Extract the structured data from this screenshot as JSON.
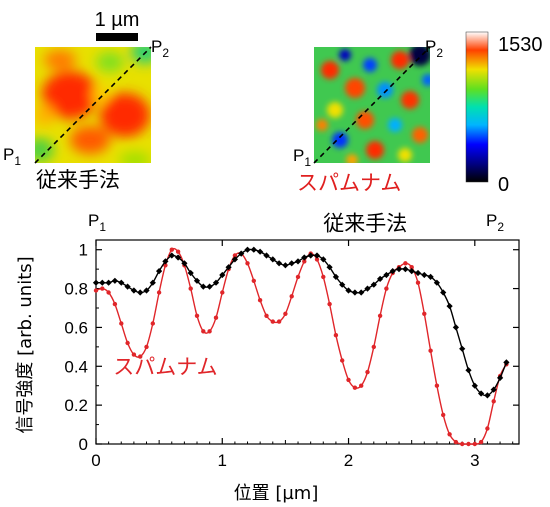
{
  "images": {
    "scale_bar": "1 µm",
    "left": {
      "p1": "P",
      "p1_sub": "1",
      "p2": "P",
      "p2_sub": "2",
      "caption": "従来手法",
      "caption_color": "#000000"
    },
    "right": {
      "p1": "P",
      "p1_sub": "1",
      "p2": "P",
      "p2_sub": "2",
      "caption": "スパムナム",
      "caption_color": "#e02020"
    },
    "colorbar": {
      "max_label": "1530",
      "min_label": "0"
    }
  },
  "chart_data": {
    "type": "line",
    "xlabel": "位置 [µm]",
    "ylabel": "信号強度 [arb. units]",
    "xlim": [
      0,
      3.35
    ],
    "ylim": [
      0,
      1.05
    ],
    "x_ticks": [
      0,
      1,
      2,
      3
    ],
    "y_ticks": [
      0,
      0.2,
      0.4,
      0.6,
      0.8,
      1
    ],
    "x_tick_labels": [
      "0",
      "1",
      "2",
      "3"
    ],
    "y_tick_labels": [
      "0",
      "0.2",
      "0.4",
      "0.6",
      "0.8",
      "1"
    ],
    "endpoint_labels": {
      "left": "P",
      "left_sub": "1",
      "right": "P",
      "right_sub": "2"
    },
    "series": [
      {
        "name": "従来手法",
        "color": "#000000",
        "x": [
          0,
          0.05,
          0.1,
          0.15,
          0.2,
          0.25,
          0.3,
          0.35,
          0.4,
          0.45,
          0.5,
          0.55,
          0.6,
          0.65,
          0.7,
          0.75,
          0.8,
          0.85,
          0.9,
          0.95,
          1.0,
          1.05,
          1.1,
          1.15,
          1.2,
          1.25,
          1.3,
          1.35,
          1.4,
          1.45,
          1.5,
          1.55,
          1.6,
          1.65,
          1.7,
          1.75,
          1.8,
          1.85,
          1.9,
          1.95,
          2.0,
          2.05,
          2.1,
          2.15,
          2.2,
          2.25,
          2.3,
          2.35,
          2.4,
          2.45,
          2.5,
          2.55,
          2.6,
          2.65,
          2.7,
          2.75,
          2.8,
          2.85,
          2.9,
          2.95,
          3.0,
          3.05,
          3.1,
          3.15,
          3.2,
          3.25
        ],
        "y": [
          0.83,
          0.83,
          0.83,
          0.84,
          0.83,
          0.81,
          0.79,
          0.78,
          0.79,
          0.83,
          0.89,
          0.94,
          0.97,
          0.96,
          0.93,
          0.88,
          0.84,
          0.81,
          0.81,
          0.83,
          0.87,
          0.91,
          0.95,
          0.98,
          1.0,
          1.0,
          0.99,
          0.97,
          0.95,
          0.93,
          0.92,
          0.93,
          0.94,
          0.96,
          0.97,
          0.97,
          0.95,
          0.91,
          0.86,
          0.82,
          0.79,
          0.78,
          0.78,
          0.8,
          0.82,
          0.85,
          0.87,
          0.89,
          0.9,
          0.9,
          0.89,
          0.88,
          0.87,
          0.86,
          0.83,
          0.78,
          0.71,
          0.6,
          0.49,
          0.38,
          0.3,
          0.26,
          0.25,
          0.28,
          0.34,
          0.42
        ]
      },
      {
        "name": "スパムナム",
        "color": "#e0262a",
        "x": [
          0,
          0.05,
          0.1,
          0.15,
          0.2,
          0.25,
          0.3,
          0.35,
          0.4,
          0.45,
          0.5,
          0.55,
          0.6,
          0.65,
          0.7,
          0.75,
          0.8,
          0.85,
          0.9,
          0.95,
          1.0,
          1.05,
          1.1,
          1.15,
          1.2,
          1.25,
          1.3,
          1.35,
          1.4,
          1.45,
          1.5,
          1.55,
          1.6,
          1.65,
          1.7,
          1.75,
          1.8,
          1.85,
          1.9,
          1.95,
          2.0,
          2.05,
          2.1,
          2.15,
          2.2,
          2.25,
          2.3,
          2.35,
          2.4,
          2.45,
          2.5,
          2.55,
          2.6,
          2.65,
          2.7,
          2.75,
          2.8,
          2.85,
          2.9,
          2.95,
          3.0,
          3.05,
          3.1,
          3.15,
          3.2,
          3.25
        ],
        "y": [
          0.79,
          0.8,
          0.78,
          0.72,
          0.62,
          0.52,
          0.46,
          0.45,
          0.5,
          0.62,
          0.78,
          0.92,
          1.0,
          0.99,
          0.92,
          0.8,
          0.66,
          0.58,
          0.58,
          0.65,
          0.78,
          0.9,
          0.97,
          0.98,
          0.93,
          0.84,
          0.74,
          0.66,
          0.63,
          0.63,
          0.67,
          0.76,
          0.86,
          0.94,
          0.98,
          0.95,
          0.86,
          0.72,
          0.56,
          0.43,
          0.33,
          0.29,
          0.3,
          0.37,
          0.5,
          0.66,
          0.8,
          0.88,
          0.91,
          0.93,
          0.91,
          0.83,
          0.67,
          0.48,
          0.3,
          0.15,
          0.05,
          0.01,
          0.0,
          0.0,
          0.0,
          0.01,
          0.08,
          0.22,
          0.35,
          0.41
        ]
      }
    ],
    "series_labels": [
      {
        "text": "従来手法",
        "color": "#000000",
        "at_x": 1.8,
        "at_y": 1.1
      },
      {
        "text": "スパムナム",
        "color": "#e0262a",
        "at_x": 0.55,
        "at_y": 0.36
      }
    ]
  }
}
